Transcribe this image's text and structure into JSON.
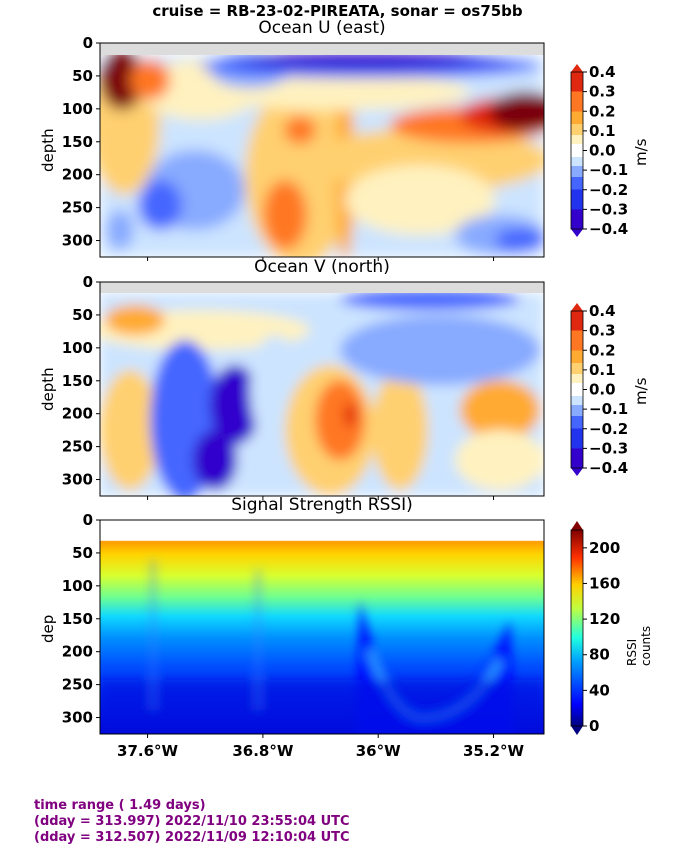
{
  "suptitle": "cruise = RB-23-02-PIREATA,  sonar = os75bb",
  "chart_data": [
    {
      "type": "heatmap",
      "title": "Ocean U (east)",
      "ylabel": "depth",
      "colorbar_label": "m/s",
      "colorbar_ticks": [
        "0.4",
        "0.3",
        "0.2",
        "0.1",
        "0.0",
        "−0.1",
        "−0.2",
        "−0.3",
        "−0.4"
      ],
      "ylim": [
        325,
        0
      ],
      "yticks": [
        "0",
        "50",
        "100",
        "150",
        "200",
        "250",
        "300"
      ],
      "colormap": [
        "#3300cc",
        "#2233ee",
        "#4466ff",
        "#88aaff",
        "#cce4ff",
        "#ffffff",
        "#fff2c0",
        "#ffd070",
        "#ffaa33",
        "#ff7722",
        "#e02810",
        "#7a0010"
      ]
    },
    {
      "type": "heatmap",
      "title": "Ocean V (north)",
      "ylabel": "depth",
      "colorbar_label": "m/s",
      "colorbar_ticks": [
        "0.4",
        "0.3",
        "0.2",
        "0.1",
        "0.0",
        "−0.1",
        "−0.2",
        "−0.3",
        "−0.4"
      ],
      "ylim": [
        325,
        0
      ],
      "yticks": [
        "0",
        "50",
        "100",
        "150",
        "200",
        "250",
        "300"
      ]
    },
    {
      "type": "heatmap",
      "title": "Signal Strength RSSI)",
      "ylabel": "dep",
      "colorbar_label": "RSSI counts",
      "colorbar_ticks": [
        "200",
        "160",
        "120",
        "80",
        "40",
        "0"
      ],
      "ylim": [
        325,
        0
      ],
      "yticks": [
        "0",
        "50",
        "100",
        "150",
        "200",
        "250",
        "300"
      ],
      "xticks": [
        "37.6°W",
        "36.8°W",
        "36°W",
        "35.2°W"
      ],
      "colormap": [
        "#000080",
        "#0000ff",
        "#0080ff",
        "#00e0ff",
        "#60ffa0",
        "#d0ff30",
        "#ffd000",
        "#ff6000",
        "#e00000",
        "#800000"
      ]
    }
  ],
  "footer": {
    "line1": "time range ( 1.49 days)",
    "line2": "(dday = 313.997) 2022/11/10 23:55:04 UTC",
    "line3": "(dday = 312.507) 2022/11/09 12:10:04 UTC"
  }
}
